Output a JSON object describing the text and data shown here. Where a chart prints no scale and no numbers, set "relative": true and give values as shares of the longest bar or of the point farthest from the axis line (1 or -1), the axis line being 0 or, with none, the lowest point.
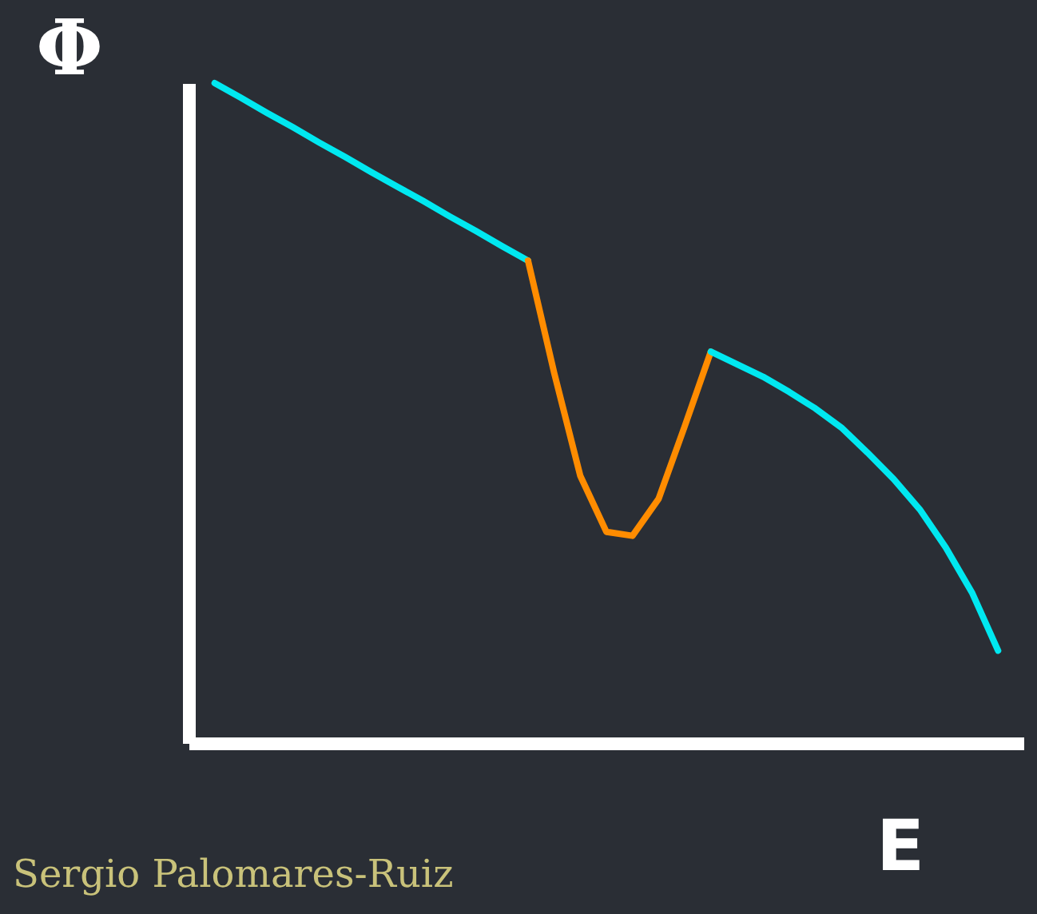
{
  "chart_data": {
    "type": "line",
    "relative": true,
    "xlabel": "E",
    "ylabel": "Φ",
    "line_style": "solid",
    "annotations": [
      "Sergio Palomares-Ruiz"
    ],
    "categories": [
      null,
      null,
      null,
      null,
      null,
      null,
      null,
      null,
      null,
      null,
      null,
      null,
      null,
      null,
      null,
      null,
      null,
      null,
      null,
      null,
      null,
      null,
      null,
      null,
      null,
      null,
      null,
      null,
      null,
      null,
      null
    ],
    "series": [
      {
        "color": "#00e8f0",
        "values": [
          1.0,
          0.978,
          0.955,
          0.933,
          0.91,
          0.888,
          0.865,
          0.843,
          0.821,
          0.798,
          0.776,
          0.753,
          0.731,
          null,
          null,
          null,
          null,
          null,
          null,
          null,
          null,
          null,
          null,
          null,
          null,
          null,
          null,
          null,
          null,
          null,
          null
        ]
      },
      {
        "color": "#ff8c00",
        "values": [
          null,
          null,
          null,
          null,
          null,
          null,
          null,
          null,
          null,
          null,
          null,
          null,
          0.731,
          0.561,
          0.405,
          0.32,
          0.314,
          0.37,
          0.48,
          0.593,
          null,
          null,
          null,
          null,
          null,
          null,
          null,
          null,
          null,
          null,
          null
        ]
      },
      {
        "color": "#00e8f0",
        "values": [
          null,
          null,
          null,
          null,
          null,
          null,
          null,
          null,
          null,
          null,
          null,
          null,
          null,
          null,
          null,
          null,
          null,
          null,
          null,
          0.593,
          0.574,
          0.555,
          0.532,
          0.507,
          0.478,
          0.44,
          0.4,
          0.354,
          0.296,
          0.228,
          0.14
        ]
      }
    ]
  }
}
